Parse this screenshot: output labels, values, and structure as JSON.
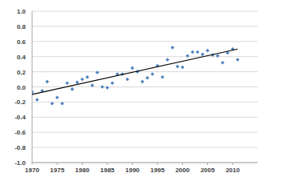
{
  "chart_data": {
    "type": "scatter",
    "x": [
      1970,
      1971,
      1972,
      1973,
      1974,
      1975,
      1976,
      1977,
      1978,
      1979,
      1980,
      1981,
      1982,
      1983,
      1984,
      1985,
      1986,
      1987,
      1988,
      1989,
      1990,
      1991,
      1992,
      1993,
      1994,
      1995,
      1996,
      1997,
      1998,
      1999,
      2000,
      2001,
      2002,
      2003,
      2004,
      2005,
      2006,
      2007,
      2008,
      2009,
      2010,
      2011
    ],
    "series": [
      {
        "type": "scatter",
        "color": "#4f81bd",
        "marker": "diamond",
        "values": [
          -0.07,
          -0.17,
          -0.05,
          0.07,
          -0.22,
          -0.14,
          -0.22,
          0.05,
          -0.03,
          0.06,
          0.1,
          0.13,
          0.02,
          0.19,
          0.0,
          -0.01,
          0.05,
          0.17,
          0.17,
          0.1,
          0.25,
          0.2,
          0.07,
          0.12,
          0.17,
          0.28,
          0.13,
          0.36,
          0.52,
          0.27,
          0.26,
          0.41,
          0.46,
          0.46,
          0.43,
          0.48,
          0.42,
          0.41,
          0.32,
          0.45,
          0.5,
          0.36
        ]
      },
      {
        "type": "line",
        "color": "#000000",
        "line_style": "solid",
        "x": [
          1970,
          2011
        ],
        "values": [
          -0.1,
          0.5
        ]
      }
    ],
    "xlim": [
      1970,
      2015
    ],
    "xticks": [
      1970,
      1975,
      1980,
      1985,
      1990,
      1995,
      2000,
      2005,
      2010
    ],
    "ylim": [
      -1.0,
      1.0
    ],
    "yticks": [
      {
        "value": -1.0,
        "label": "-1.0"
      },
      {
        "value": -0.8,
        "label": "-0.8"
      },
      {
        "value": -0.6,
        "label": "-0.6"
      },
      {
        "value": -0.4,
        "label": "-0.4"
      },
      {
        "value": -0.2,
        "label": "-0.2"
      },
      {
        "value": 0.0,
        "label": "0.0"
      },
      {
        "value": 0.2,
        "label": "0.2"
      },
      {
        "value": 0.4,
        "label": "0.4"
      },
      {
        "value": 0.6,
        "label": "0.6"
      },
      {
        "value": 0.8,
        "label": "0.8"
      },
      {
        "value": 1.0,
        "label": "1.0"
      }
    ],
    "grid": true
  }
}
